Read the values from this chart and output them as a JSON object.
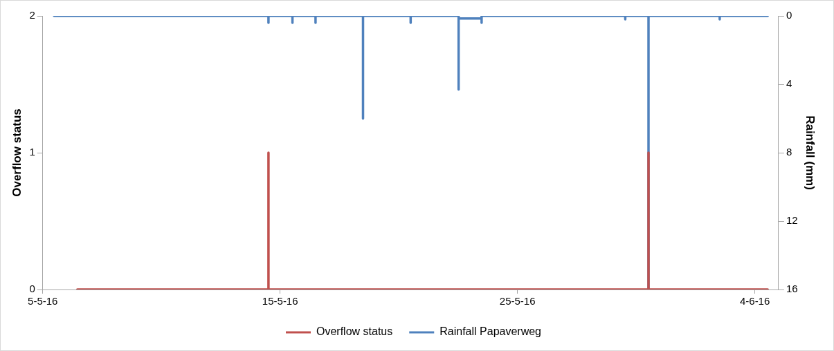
{
  "chart_data": {
    "type": "line",
    "ylabel": "Overflow status",
    "y2label": "Rainfall (mm)",
    "xlim": [
      "--05-05",
      "--06-05"
    ],
    "xticks": [
      {
        "value": "--05-05",
        "label": "5-5-16"
      },
      {
        "value": "--05-15",
        "label": "15-5-16"
      },
      {
        "value": "--05-25",
        "label": "25-5-16"
      },
      {
        "value": "--06-04",
        "label": "4-6-16"
      }
    ],
    "ylim": [
      0,
      2
    ],
    "yticks": [
      0,
      1,
      2
    ],
    "y2lim": [
      16,
      0
    ],
    "y2ticks": [
      0,
      4,
      8,
      12,
      16
    ],
    "grid": false,
    "legend": "bottom",
    "marker": "none",
    "line_style": "solid",
    "series": [
      {
        "name": "Overflow status",
        "color": "#c0504d",
        "x": [
          "--05-06T11:00",
          "--05-14T12:15",
          "--05-14T12:15",
          "--05-14T12:15",
          "--05-30T12:30",
          "--05-30T12:30",
          "--05-30T12:30",
          "--06-04T13:00"
        ],
        "values": [
          0,
          0,
          1,
          0,
          0,
          1,
          0,
          0
        ]
      },
      {
        "name": "Rainfall Papaverweg",
        "color": "#4f81bd",
        "axis": "y2",
        "x": [
          "--05-05T11:30",
          "--05-14T12:15",
          "--05-14T12:15",
          "--05-14T12:15",
          "--05-15T12:30",
          "--05-15T12:30",
          "--05-15T12:30",
          "--05-16T11:50",
          "--05-16T11:50",
          "--05-16T11:50",
          "--05-18T11:50",
          "--05-18T11:50",
          "--05-18T11:50",
          "--05-20T12:00",
          "--05-20T12:00",
          "--05-20T12:00",
          "--05-22T12:30",
          "--05-22T12:30",
          "--05-22T12:30",
          "--05-23T11:45",
          "--05-23T11:45",
          "--05-23T11:45",
          "--05-29T13:00",
          "--05-29T13:00",
          "--05-29T13:00",
          "--05-30T12:30",
          "--05-30T12:30",
          "--05-30T12:30",
          "--06-02T12:30",
          "--06-02T12:30",
          "--06-02T12:30",
          "--06-04T13:00"
        ],
        "values": [
          0,
          0,
          0.4,
          0,
          0,
          0.4,
          0,
          0,
          0.4,
          0,
          0,
          6,
          0,
          0,
          0.4,
          0,
          0,
          4.3,
          0.15,
          0.15,
          0.4,
          0,
          0,
          0.2,
          0,
          0,
          16,
          0,
          0,
          0.2,
          0,
          0
        ]
      }
    ]
  }
}
